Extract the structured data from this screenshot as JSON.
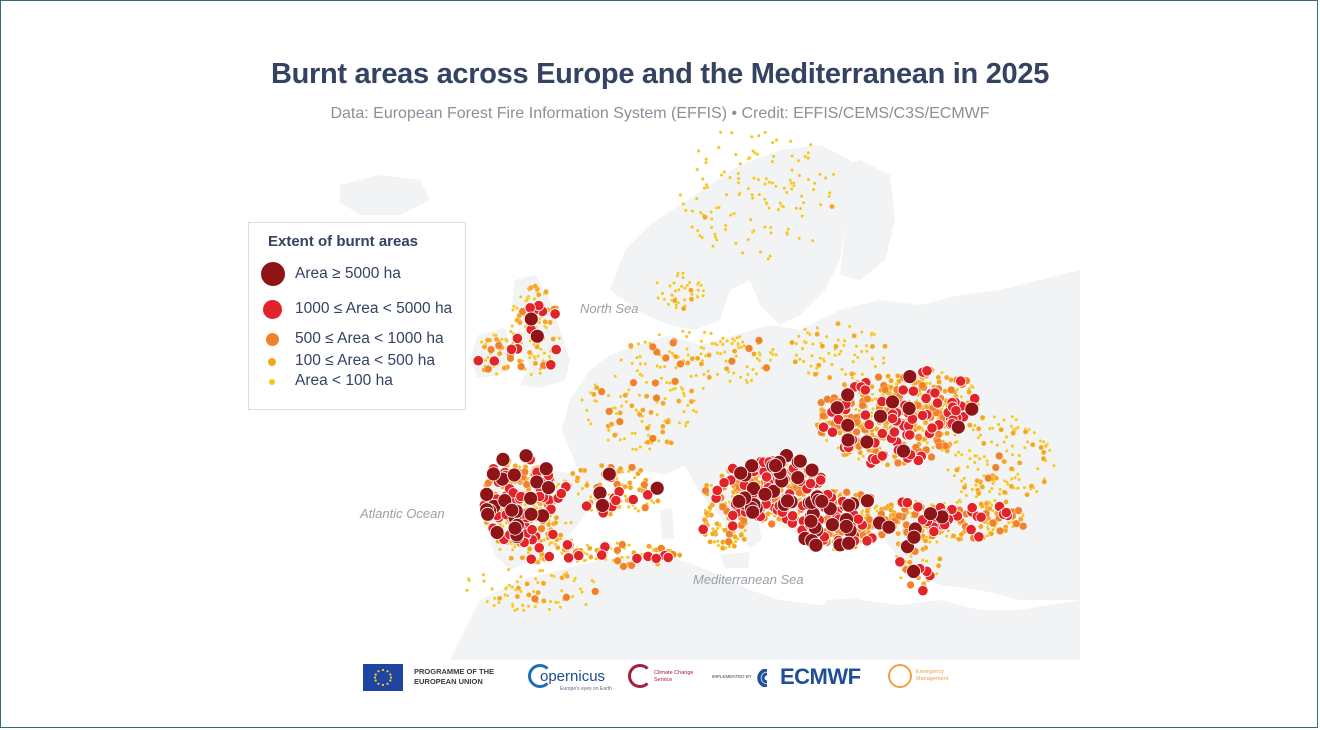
{
  "title": "Burnt areas across Europe and the Mediterranean in 2025",
  "subtitle": "Data: European Forest Fire Information System (EFFIS) • Credit: EFFIS/CEMS/C3S/ECMWF",
  "map": {
    "sea_labels": {
      "north": "North Sea",
      "atlantic": "Atlantic Ocean",
      "mediterranean": "Mediterranean Sea"
    },
    "colors": {
      "land": "#f2f3f5",
      "sea": "#ffffff",
      "xl": "#8f1418",
      "l": "#e2242a",
      "m": "#f2822a",
      "s": "#f5a623",
      "xs": "#f3c61d"
    }
  },
  "legend": {
    "title": "Extent of burnt areas",
    "items": [
      {
        "label": "Area ≥ 5000 ha",
        "color": "#8f1418"
      },
      {
        "label": "1000 ≤ Area < 5000 ha",
        "color": "#e2242a"
      },
      {
        "label": "500 ≤ Area < 1000 ha",
        "color": "#f2822a"
      },
      {
        "label": "100 ≤ Area < 500 ha",
        "color": "#f5a623"
      },
      {
        "label": "Area < 100 ha",
        "color": "#f3c61d"
      }
    ]
  },
  "logos": {
    "eu": "PROGRAMME OF THE EUROPEAN UNION",
    "copernicus": "opernicus",
    "copernicus_sub": "Europe's eyes on Earth",
    "c3s": "Climate Change Service",
    "ecmwf_pre": "IMPLEMENTED BY",
    "ecmwf": "ECMWF",
    "em": "Emergency Management"
  }
}
